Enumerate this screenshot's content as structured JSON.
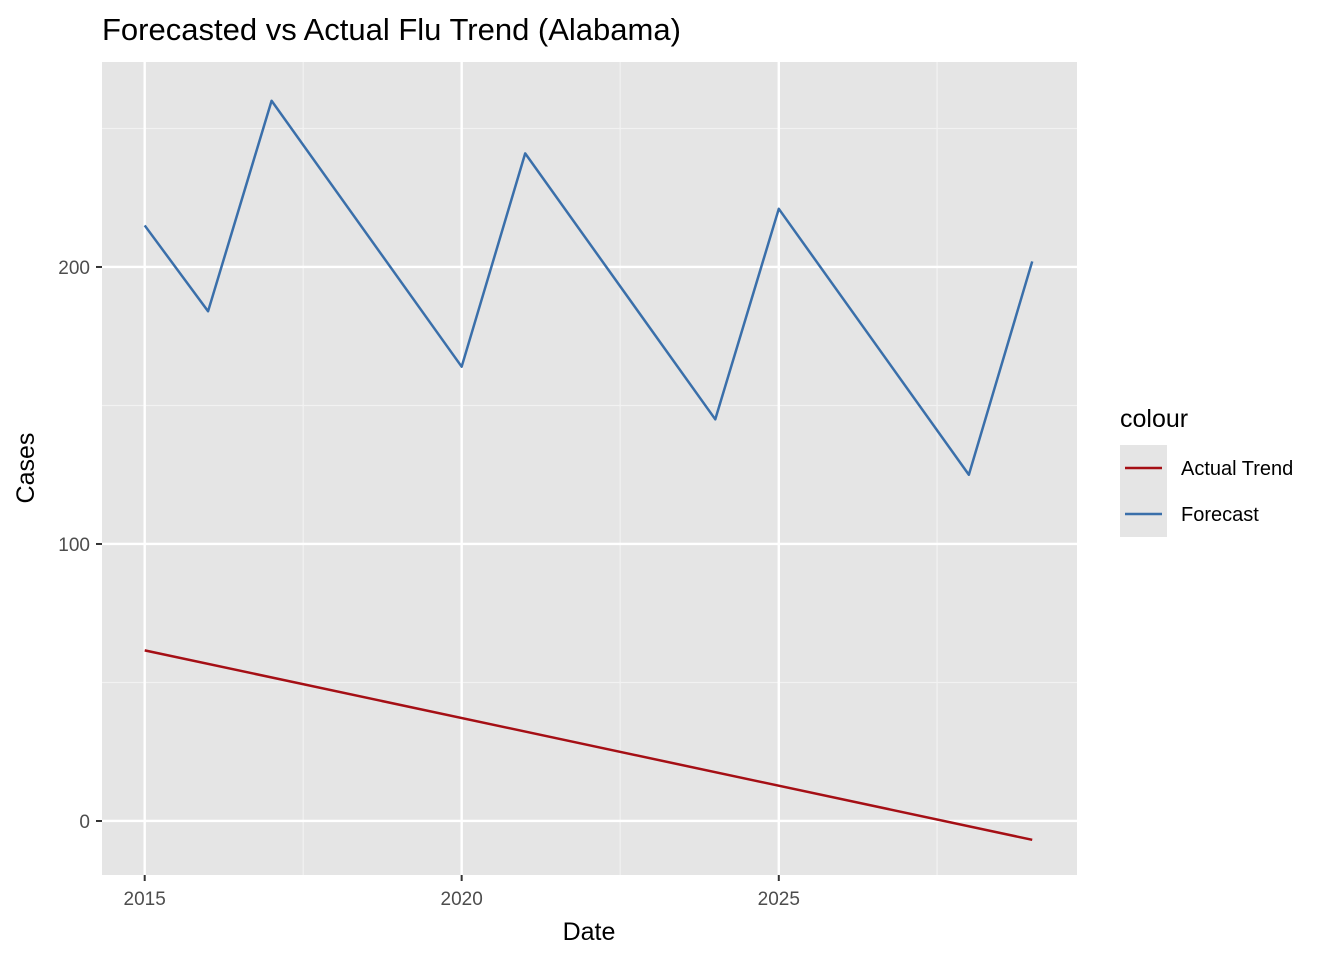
{
  "chart_data": {
    "type": "line",
    "title": "Forecasted vs Actual Flu Trend (Alabama)",
    "xlabel": "Date",
    "ylabel": "Cases",
    "x_axis_type": "date",
    "xlim": [
      "2014-04-30",
      "2029-09-15"
    ],
    "ylim": [
      -19.5,
      274
    ],
    "x_ticks": [
      {
        "value": "2015-01-01",
        "label": "2015"
      },
      {
        "value": "2020-01-01",
        "label": "2020"
      },
      {
        "value": "2025-01-01",
        "label": "2025"
      }
    ],
    "y_ticks": [
      {
        "value": 0,
        "label": "0"
      },
      {
        "value": 100,
        "label": "100"
      },
      {
        "value": 200,
        "label": "200"
      }
    ],
    "x_minor_breaks": [
      "2017-07-02",
      "2022-07-02",
      "2027-07-02"
    ],
    "y_minor_breaks": [
      50,
      150,
      250
    ],
    "grid": true,
    "panel_background": "#e5e5e5",
    "legend": {
      "title": "colour",
      "position": "right",
      "entries": [
        "Actual Trend",
        "Forecast"
      ]
    },
    "series": [
      {
        "name": "Actual Trend",
        "color": "#a50f15",
        "points": [
          {
            "x": "2015-01-01",
            "y": 61.6
          },
          {
            "x": "2028-12-31",
            "y": -6.8
          }
        ]
      },
      {
        "name": "Forecast",
        "color": "#3a6faa",
        "points": [
          {
            "x": "2015-01-01",
            "y": 215
          },
          {
            "x": "2016-01-01",
            "y": 184
          },
          {
            "x": "2017-01-01",
            "y": 260
          },
          {
            "x": "2020-01-01",
            "y": 164
          },
          {
            "x": "2021-01-01",
            "y": 241
          },
          {
            "x": "2024-01-01",
            "y": 145
          },
          {
            "x": "2025-01-01",
            "y": 221
          },
          {
            "x": "2028-01-01",
            "y": 125
          },
          {
            "x": "2028-12-31",
            "y": 202
          }
        ]
      }
    ]
  }
}
